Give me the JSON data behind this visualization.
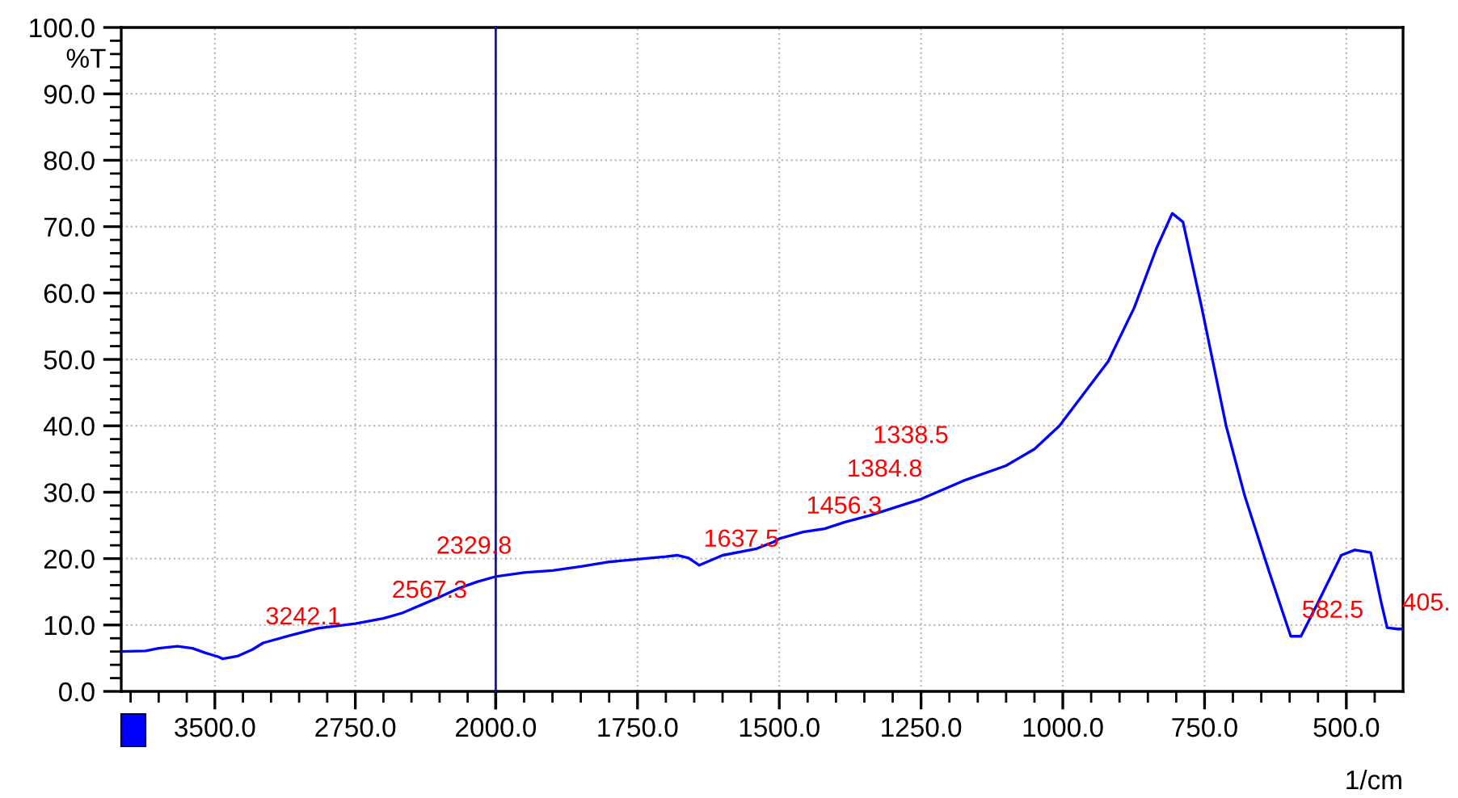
{
  "chart_data": [
    {
      "type": "line",
      "ylabel": "%T",
      "x": [
        4000,
        3870,
        3800,
        3700,
        3620,
        3550,
        3480,
        3458,
        3380,
        3300,
        3242,
        3100,
        2950,
        2750,
        2600,
        2500,
        2400,
        2300,
        2200,
        2100,
        2000
      ],
      "series": [
        {
          "color": "#0000ff",
          "values": [
            6.0,
            6.1,
            6.5,
            6.8,
            6.5,
            5.8,
            5.2,
            4.9,
            5.3,
            6.3,
            7.3,
            8.4,
            9.5,
            10.2,
            11.0,
            11.8,
            13.0,
            14.2,
            15.5,
            16.5,
            17.3
          ]
        }
      ],
      "xlim": [
        4000,
        2000
      ],
      "xticks": [
        {
          "value": 3500,
          "label": "3500.0"
        },
        {
          "value": 2750,
          "label": "2750.0"
        },
        {
          "value": 2000,
          "label": "2000.0"
        }
      ],
      "ylim": [
        0,
        100
      ],
      "yticks": [
        {
          "value": 0,
          "label": "0.0"
        },
        {
          "value": 10,
          "label": "10.0"
        },
        {
          "value": 20,
          "label": "20.0"
        },
        {
          "value": 30,
          "label": "30.0"
        },
        {
          "value": 40,
          "label": "40.0"
        },
        {
          "value": 50,
          "label": "50.0"
        },
        {
          "value": 60,
          "label": "60.0"
        },
        {
          "value": 70,
          "label": "70.0"
        },
        {
          "value": 80,
          "label": "80.0"
        },
        {
          "value": 90,
          "label": "90.0"
        },
        {
          "value": 100,
          "label": "100.0"
        }
      ],
      "grid": true,
      "line_style": "solid",
      "marker": "none",
      "ref_lines": [
        {
          "axis": "x",
          "value": 2000,
          "color": "#1a1a80",
          "line_style": "solid"
        }
      ],
      "annotations": [
        {
          "text": "3242.1",
          "x": 3242.1,
          "y": 7.3
        },
        {
          "text": "2567.3",
          "x": 2567.3,
          "y": 11.3
        },
        {
          "text": "2329.8",
          "x": 2329.8,
          "y": 13.9
        }
      ]
    },
    {
      "type": "line",
      "xlabel": "1/cm",
      "tick_labels": "x",
      "x": [
        2000,
        1950,
        1900,
        1850,
        1800,
        1750,
        1700,
        1680,
        1660,
        1641,
        1600,
        1540,
        1510,
        1500,
        1458,
        1420,
        1384,
        1340,
        1252,
        1176,
        1100,
        1050,
        1006,
        920,
        874,
        835,
        807,
        788,
        755,
        712,
        679,
        636,
        598,
        580,
        551,
        509,
        485,
        457,
        438,
        428,
        410,
        400
      ],
      "series": [
        {
          "color": "#0000ff",
          "values": [
            17.3,
            17.9,
            18.2,
            18.8,
            19.5,
            19.9,
            20.3,
            20.5,
            20.1,
            19.0,
            20.5,
            21.5,
            22.5,
            23.0,
            24.0,
            24.5,
            25.5,
            26.5,
            28.9,
            31.7,
            34.0,
            36.5,
            40.0,
            49.7,
            57.8,
            66.7,
            72.0,
            70.7,
            57.8,
            40.0,
            29.4,
            18.0,
            8.3,
            8.3,
            13.2,
            20.5,
            21.3,
            20.9,
            13.2,
            9.6,
            9.4,
            9.4
          ]
        }
      ],
      "xlim": [
        2000,
        400
      ],
      "xticks": [
        {
          "value": 2000,
          "label": null
        },
        {
          "value": 1750,
          "label": "1750.0"
        },
        {
          "value": 1500,
          "label": "1500.0"
        },
        {
          "value": 1250,
          "label": "1250.0"
        },
        {
          "value": 1000,
          "label": "1000.0"
        },
        {
          "value": 750,
          "label": "750.0"
        },
        {
          "value": 500,
          "label": "500.0"
        }
      ],
      "ylim": [
        0,
        100
      ],
      "yticks": [
        0,
        10,
        20,
        30,
        40,
        50,
        60,
        70,
        80,
        90,
        100
      ],
      "grid": true,
      "line_style": "solid",
      "marker": "none",
      "annotations": [
        {
          "text": "1637.5",
          "x": 1637.5,
          "y": 19.0
        },
        {
          "text": "1456.3",
          "x": 1456.3,
          "y": 24.0
        },
        {
          "text": "1384.8",
          "x": 1384.8,
          "y": 25.5
        },
        {
          "text": "1338.5",
          "x": 1338.5,
          "y": 26.5
        },
        {
          "text": "582.5",
          "x": 582.5,
          "y": 8.3
        },
        {
          "text": "405.",
          "x": 405,
          "y": 9.4
        }
      ]
    }
  ]
}
